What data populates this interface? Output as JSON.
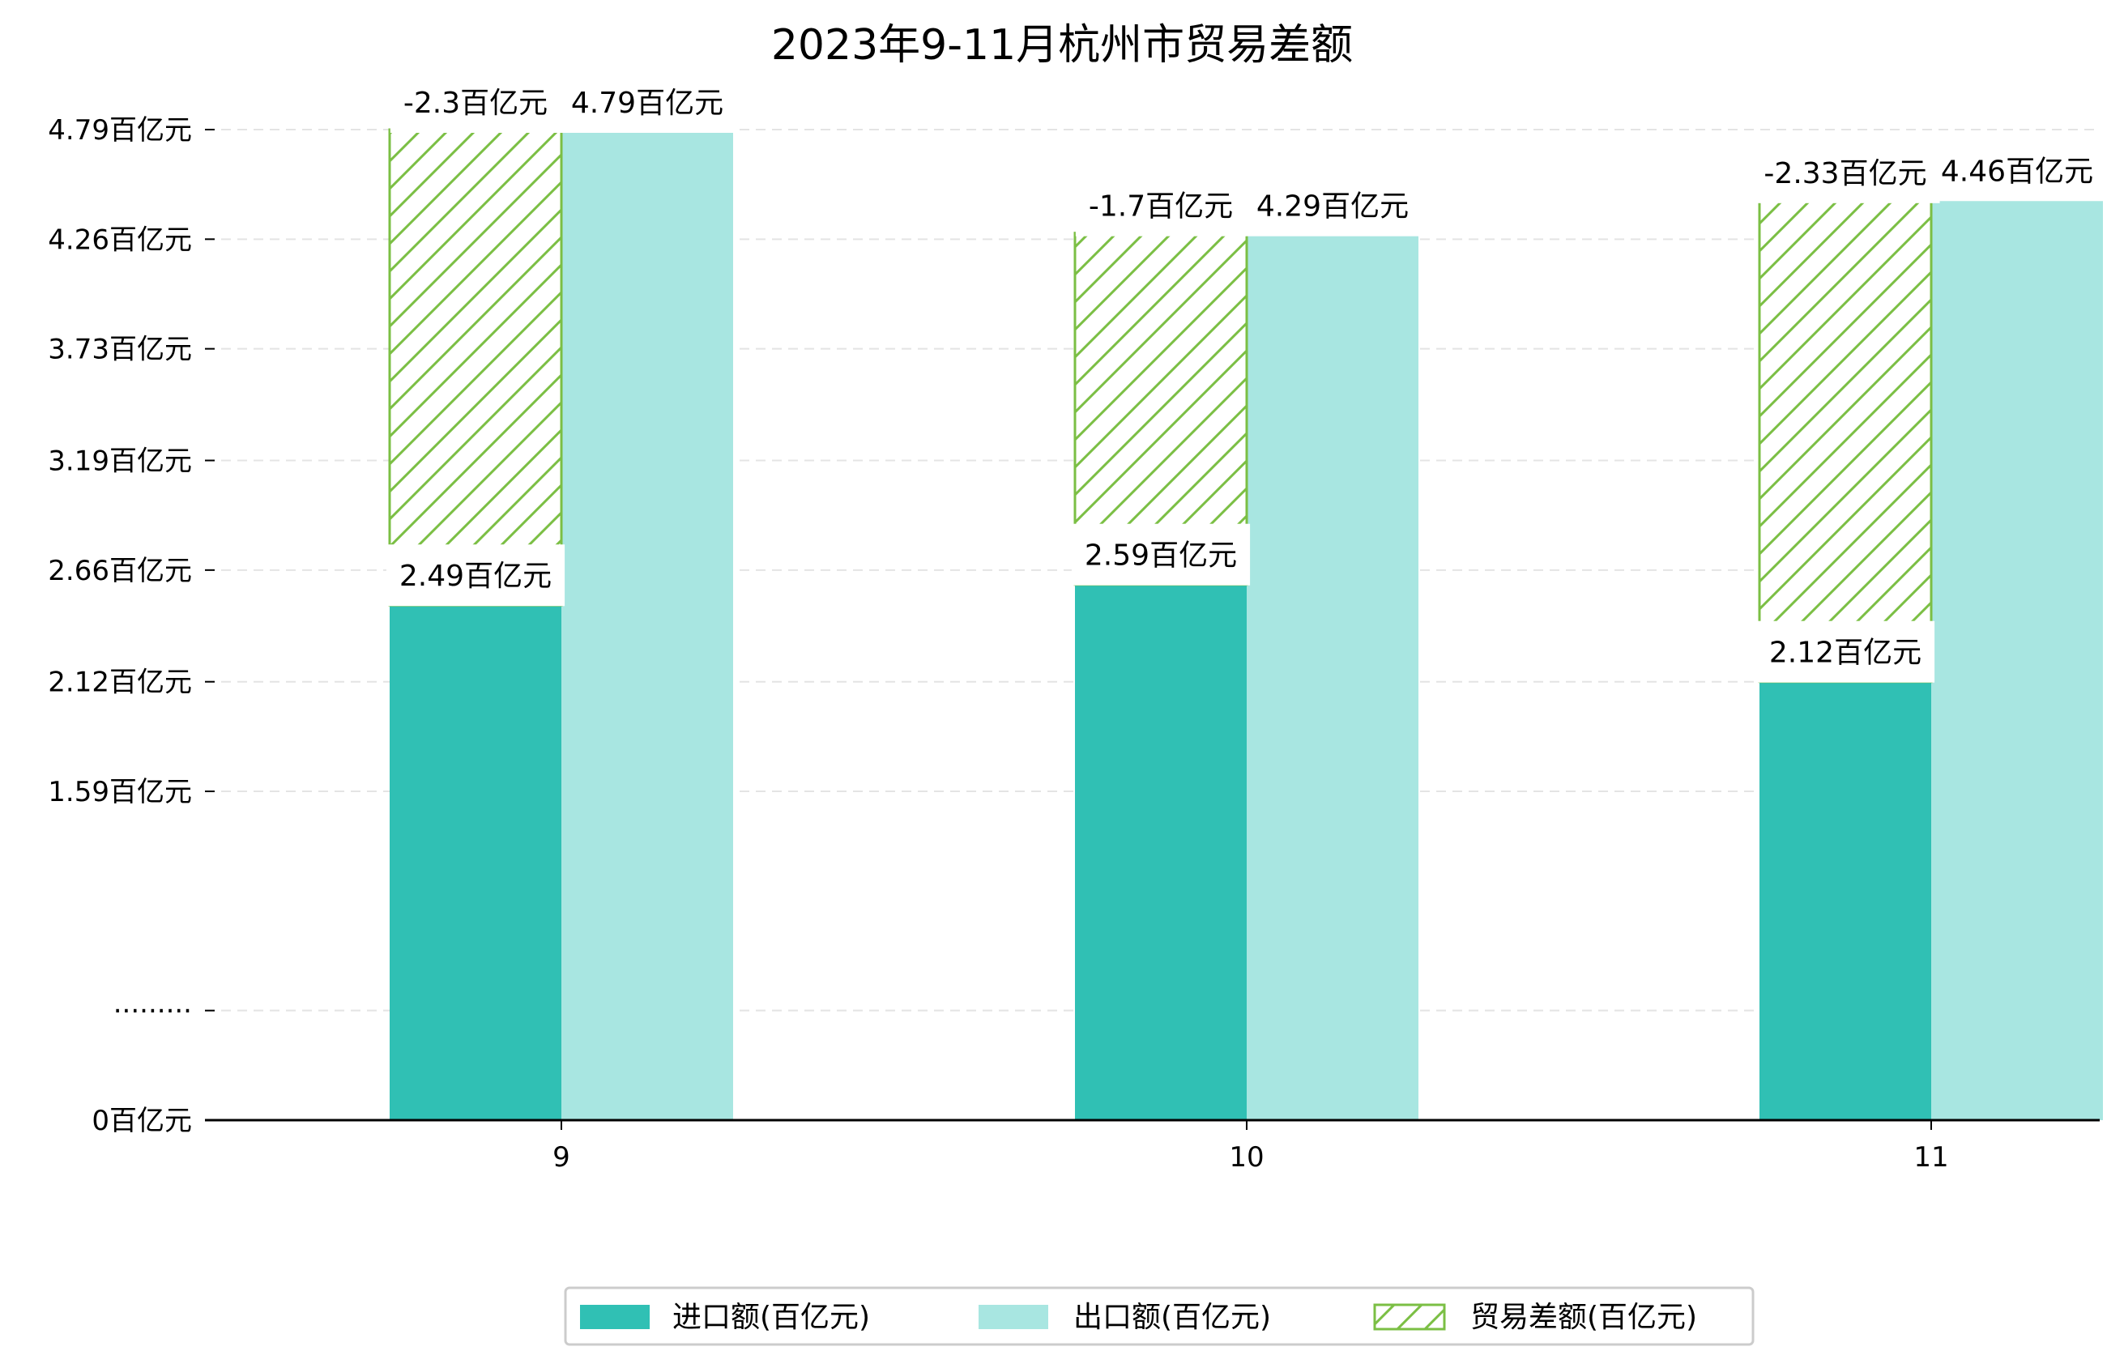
{
  "chart_data": {
    "type": "bar",
    "title": "2023年9-11月杭州市贸易差额",
    "xlabel": "",
    "ylabel": "",
    "categories": [
      "9",
      "10",
      "11"
    ],
    "series": [
      {
        "name": "进口额(百亿元)",
        "values": [
          2.49,
          2.59,
          2.12
        ],
        "color": "#30C0B4"
      },
      {
        "name": "出口额(百亿元)",
        "values": [
          4.79,
          4.29,
          4.46
        ],
        "color": "#A8E6E1"
      },
      {
        "name": "贸易差额(百亿元)",
        "values": [
          -2.3,
          -1.7,
          -2.33
        ],
        "color": "#7BBF44",
        "pattern": "hatch"
      }
    ],
    "data_labels": {
      "import": [
        "2.49百亿元",
        "2.59百亿元",
        "2.12百亿元"
      ],
      "export": [
        "4.79百亿元",
        "4.29百亿元",
        "4.46百亿元"
      ],
      "balance": [
        "-2.3百亿元",
        "-1.7百亿元",
        "-2.33百亿元"
      ]
    },
    "yticks": [
      {
        "value": 0,
        "label": "0百亿元"
      },
      {
        "value": 0.53,
        "label": "·········"
      },
      {
        "value": 1.59,
        "label": "1.59百亿元"
      },
      {
        "value": 2.12,
        "label": "2.12百亿元"
      },
      {
        "value": 2.66,
        "label": "2.66百亿元"
      },
      {
        "value": 3.19,
        "label": "3.19百亿元"
      },
      {
        "value": 3.73,
        "label": "3.73百亿元"
      },
      {
        "value": 4.26,
        "label": "4.26百亿元"
      },
      {
        "value": 4.79,
        "label": "4.79百亿元"
      }
    ],
    "ylim": [
      0,
      4.79
    ],
    "grid": true,
    "legend_position": "bottom"
  }
}
